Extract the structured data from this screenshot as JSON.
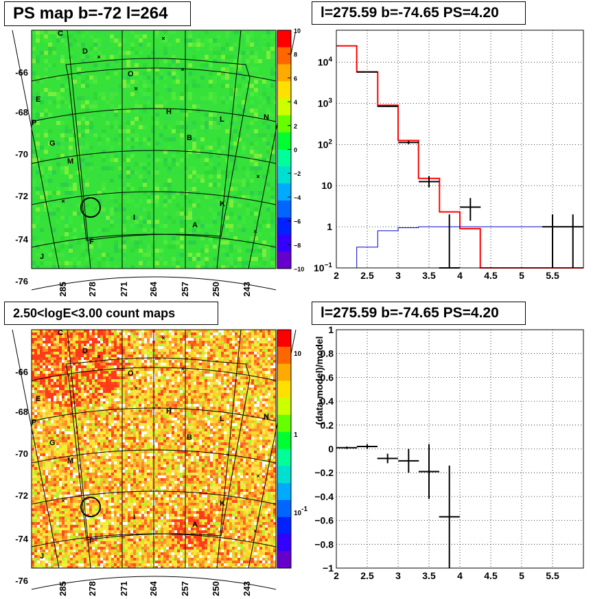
{
  "colors": {
    "ps_map_base": "#36e13a",
    "count_map_base": "#f2b62c",
    "model_line": "#ff0000",
    "background_line": "#0000cc",
    "data_points": "#000000"
  },
  "chart_data": [
    {
      "type": "heatmap",
      "title": "PS map b=-72 l=264",
      "yticks": [
        "-66",
        "-68",
        "-70",
        "-72",
        "-74",
        "-76"
      ],
      "xticks": [
        "285",
        "278",
        "271",
        "264",
        "257",
        "250",
        "243"
      ],
      "colorbar": {
        "scale": "linear",
        "range": [
          -10,
          10
        ],
        "ticks": [
          "10",
          "8",
          "6",
          "4",
          "2",
          "0",
          "−2",
          "−4",
          "−6",
          "−8",
          "−10"
        ],
        "palette": [
          "#ff0000",
          "#ff6600",
          "#ffaa00",
          "#ffe000",
          "#ccff00",
          "#66ff00",
          "#00ff30",
          "#00ff99",
          "#00e0d0",
          "#00aaff",
          "#0066ff",
          "#0022ff",
          "#3300ff",
          "#6600cc"
        ]
      },
      "field_labels": [
        "C",
        "D",
        "O",
        "E",
        "H",
        "L",
        "N",
        "P",
        "G",
        "B",
        "M",
        "K",
        "I",
        "A",
        "F",
        "J"
      ]
    },
    {
      "type": "line",
      "title": "l=275.59 b=-74.65 PS=4.20",
      "x_scale": "linear",
      "y_scale": "log",
      "xlim": [
        2,
        6
      ],
      "ylim": [
        0.1,
        60000
      ],
      "xticks": [
        "2",
        "2.5",
        "3",
        "3.5",
        "4",
        "4.5",
        "5",
        "5.5"
      ],
      "yticks": [
        "10^{4}",
        "10^{3}",
        "10^{2}",
        "10",
        "1",
        "10^{−1}"
      ],
      "grid": true,
      "series": [
        {
          "role": "model",
          "style": "histogram",
          "bin_edges": [
            2.0,
            2.33,
            2.67,
            3.0,
            3.33,
            3.67,
            4.0,
            4.33,
            6.0
          ],
          "values": [
            25000,
            5800,
            900,
            125,
            15,
            2.3,
            0.9,
            0.1
          ]
        },
        {
          "role": "background",
          "style": "histogram",
          "bin_edges": [
            2.0,
            2.33,
            2.67,
            3.0,
            3.33,
            3.67,
            4.0,
            4.33,
            6.0
          ],
          "values": [
            0.09,
            0.32,
            0.8,
            0.95,
            1.0,
            1.0,
            1.0,
            1.0
          ]
        },
        {
          "role": "data",
          "style": "errorbar",
          "points": [
            {
              "x": 2.5,
              "xerr": 0.167,
              "y": 5800,
              "ylo": 5650,
              "yhi": 5950
            },
            {
              "x": 2.83,
              "xerr": 0.167,
              "y": 850,
              "ylo": 820,
              "yhi": 880
            },
            {
              "x": 3.17,
              "xerr": 0.167,
              "y": 112,
              "ylo": 102,
              "yhi": 123
            },
            {
              "x": 3.5,
              "xerr": 0.167,
              "y": 12.5,
              "ylo": 9,
              "yhi": 17
            },
            {
              "x": 3.83,
              "xerr": 0.167,
              "y": 0.1,
              "ylo": 0.1,
              "yhi": 2
            },
            {
              "x": 4.17,
              "xerr": 0.167,
              "y": 3,
              "ylo": 1.4,
              "yhi": 5
            },
            {
              "x": 5.5,
              "xerr": 0.167,
              "y": 1,
              "ylo": 0.1,
              "yhi": 2
            },
            {
              "x": 5.83,
              "xerr": 0.167,
              "y": 1,
              "ylo": 0.1,
              "yhi": 2
            }
          ]
        }
      ]
    },
    {
      "type": "heatmap",
      "title": "2.50<logE<3.00 count maps",
      "yticks": [
        "-66",
        "-68",
        "-70",
        "-72",
        "-74",
        "-76"
      ],
      "xticks": [
        "285",
        "278",
        "271",
        "264",
        "257",
        "250",
        "243"
      ],
      "colorbar": {
        "scale": "log",
        "ticks": [
          "10",
          "1",
          "10^{-1}"
        ],
        "palette": [
          "#ff0000",
          "#ff6600",
          "#ffaa00",
          "#ffe000",
          "#ccff00",
          "#66ff00",
          "#00ff30",
          "#00ff99",
          "#00e0d0",
          "#00aaff",
          "#0066ff",
          "#0022ff",
          "#3300ff",
          "#6600cc"
        ]
      },
      "field_labels": [
        "C",
        "D",
        "O",
        "E",
        "H",
        "L",
        "N",
        "P",
        "G",
        "B",
        "M",
        "K",
        "I",
        "A",
        "F",
        "J"
      ]
    },
    {
      "type": "scatter",
      "title": "l=275.59 b=-74.65 PS=4.20",
      "ylabel": "(data-model)/model",
      "xlim": [
        2,
        6
      ],
      "ylim": [
        -1,
        1
      ],
      "xticks": [
        "2",
        "2.5",
        "3",
        "3.5",
        "4",
        "4.5",
        "5",
        "5.5"
      ],
      "yticks": [
        "1",
        "0.8",
        "0.6",
        "0.4",
        "0.2",
        "0",
        "−0.2",
        "−0.4",
        "−0.6",
        "−0.8",
        "−1"
      ],
      "grid": true,
      "points": [
        {
          "x": 2.17,
          "xerr": 0.167,
          "y": 0.01,
          "ylo": 0.0,
          "yhi": 0.02
        },
        {
          "x": 2.5,
          "xerr": 0.167,
          "y": 0.02,
          "ylo": 0.0,
          "yhi": 0.04
        },
        {
          "x": 2.83,
          "xerr": 0.167,
          "y": -0.08,
          "ylo": -0.12,
          "yhi": -0.04
        },
        {
          "x": 3.17,
          "xerr": 0.167,
          "y": -0.1,
          "ylo": -0.2,
          "yhi": 0.0
        },
        {
          "x": 3.5,
          "xerr": 0.167,
          "y": -0.19,
          "ylo": -0.42,
          "yhi": 0.04
        },
        {
          "x": 3.83,
          "xerr": 0.167,
          "y": -0.57,
          "ylo": -1.0,
          "yhi": -0.14
        }
      ]
    }
  ]
}
